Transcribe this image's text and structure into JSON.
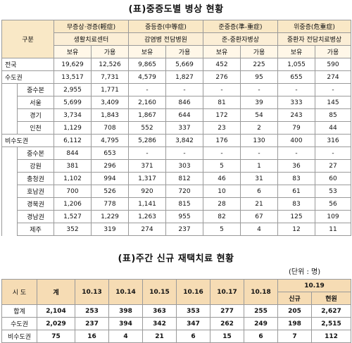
{
  "table1": {
    "title": "(표)중증도별 병상 현황",
    "col_group_label": "구분",
    "groups": [
      {
        "name": "무증상·경증(輕症)",
        "sub": "생활치료센터"
      },
      {
        "name": "중등증(中等症)",
        "sub": "감염병 전담병원"
      },
      {
        "name": "준중증(準-重症)",
        "sub": "준-중환자병상"
      },
      {
        "name": "위중증(危重症)",
        "sub": "중환자 전담치료병상"
      }
    ],
    "sub_headers": [
      "보유",
      "가용",
      "보유",
      "가용",
      "보유",
      "가용",
      "보유",
      "가용"
    ],
    "rows": [
      {
        "label": "전국",
        "level": 0,
        "values": [
          "19,629",
          "12,526",
          "9,865",
          "5,669",
          "452",
          "225",
          "1,055",
          "590"
        ]
      },
      {
        "label": "수도권",
        "level": 0,
        "values": [
          "13,517",
          "7,731",
          "4,579",
          "1,827",
          "276",
          "95",
          "655",
          "274"
        ]
      },
      {
        "label": "중수본",
        "level": 1,
        "values": [
          "2,955",
          "1,771",
          "-",
          "-",
          "-",
          "-",
          "-",
          "-"
        ]
      },
      {
        "label": "서울",
        "level": 1,
        "values": [
          "5,699",
          "3,409",
          "2,160",
          "846",
          "81",
          "39",
          "333",
          "145"
        ]
      },
      {
        "label": "경기",
        "level": 1,
        "values": [
          "3,734",
          "1,843",
          "1,867",
          "644",
          "172",
          "54",
          "243",
          "85"
        ]
      },
      {
        "label": "인천",
        "level": 1,
        "values": [
          "1,129",
          "708",
          "552",
          "337",
          "23",
          "2",
          "79",
          "44"
        ]
      },
      {
        "label": "비수도권",
        "level": 0,
        "values": [
          "6,112",
          "4,795",
          "5,286",
          "3,842",
          "176",
          "130",
          "400",
          "316"
        ]
      },
      {
        "label": "중수본",
        "level": 1,
        "values": [
          "844",
          "653",
          "-",
          "-",
          "-",
          "-",
          "-",
          "-"
        ]
      },
      {
        "label": "강원",
        "level": 1,
        "values": [
          "381",
          "296",
          "371",
          "303",
          "5",
          "1",
          "36",
          "27"
        ]
      },
      {
        "label": "충청권",
        "level": 1,
        "values": [
          "1,102",
          "994",
          "1,317",
          "812",
          "46",
          "31",
          "83",
          "60"
        ]
      },
      {
        "label": "호남권",
        "level": 1,
        "values": [
          "700",
          "526",
          "920",
          "720",
          "10",
          "6",
          "61",
          "53"
        ]
      },
      {
        "label": "경북권",
        "level": 1,
        "values": [
          "1,206",
          "778",
          "1,141",
          "815",
          "28",
          "21",
          "83",
          "56"
        ]
      },
      {
        "label": "경남권",
        "level": 1,
        "values": [
          "1,527",
          "1,229",
          "1,263",
          "955",
          "82",
          "67",
          "125",
          "109"
        ]
      },
      {
        "label": "제주",
        "level": 1,
        "values": [
          "352",
          "319",
          "274",
          "237",
          "5",
          "4",
          "12",
          "11"
        ]
      }
    ]
  },
  "table2": {
    "title": "(표)주간 신규 재택치료 현황",
    "unit": "(단위 : 명)",
    "headers": [
      "시 도",
      "계",
      "10.13",
      "10.14",
      "10.15",
      "10.16",
      "10.17",
      "10.18"
    ],
    "last_date": "10.19",
    "last_subs": [
      "신규",
      "현원"
    ],
    "rows": [
      {
        "label": "합계",
        "values": [
          "2,104",
          "253",
          "398",
          "363",
          "353",
          "277",
          "255",
          "205",
          "2,627"
        ]
      },
      {
        "label": "수도권",
        "values": [
          "2,029",
          "237",
          "394",
          "342",
          "347",
          "262",
          "249",
          "198",
          "2,515"
        ]
      },
      {
        "label": "비수도권",
        "values": [
          "75",
          "16",
          "4",
          "21",
          "6",
          "15",
          "6",
          "7",
          "112"
        ]
      }
    ]
  }
}
